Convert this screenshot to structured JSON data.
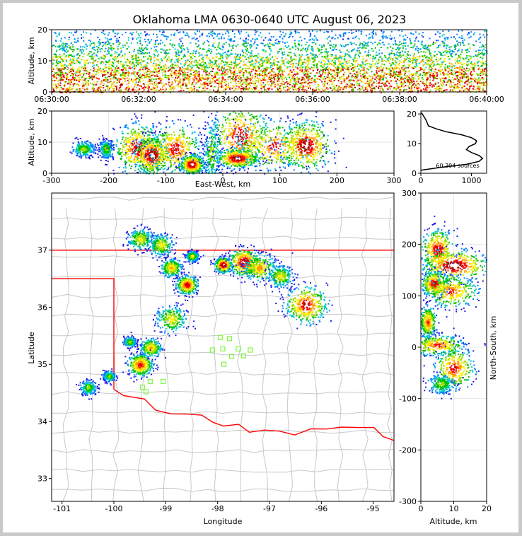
{
  "chart_data": [
    {
      "panel": "altitude-time",
      "type": "scatter",
      "title": "Oklahoma LMA 0630-0640 UTC August 06, 2023",
      "xlabel": "",
      "ylabel": "Altitude, km",
      "xticks": [
        "06:30:00",
        "06:32:00",
        "06:34:00",
        "06:36:00",
        "06:38:00",
        "06:40:00"
      ],
      "xlim": [
        "06:30:00",
        "06:40:00"
      ],
      "ylim": [
        0,
        20
      ],
      "yticks": [
        0,
        10,
        20
      ],
      "density_bands": [
        {
          "altitude_km": [
            0,
            4
          ],
          "level": 0.95
        },
        {
          "altitude_km": [
            4,
            8
          ],
          "level": 0.8
        },
        {
          "altitude_km": [
            8,
            12
          ],
          "level": 0.55
        },
        {
          "altitude_km": [
            12,
            16
          ],
          "level": 0.35
        },
        {
          "altitude_km": [
            16,
            20
          ],
          "level": 0.2
        }
      ]
    },
    {
      "panel": "altitude-east-west",
      "type": "heatmap",
      "xlabel": "East-West, km",
      "ylabel": "Altitude, km",
      "xlim": [
        -300,
        300
      ],
      "ylim": [
        0,
        20
      ],
      "xticks": [
        -300,
        -200,
        -100,
        0,
        100,
        200,
        300
      ],
      "yticks": [
        0,
        10,
        20
      ],
      "clusters": [
        {
          "x": -245,
          "z": 8,
          "sx": 10,
          "sz": 1.2,
          "w": 0.5
        },
        {
          "x": -205,
          "z": 8,
          "sx": 6,
          "sz": 1.5,
          "w": 0.5
        },
        {
          "x": -150,
          "z": 8,
          "sx": 20,
          "sz": 4,
          "w": 0.9
        },
        {
          "x": -125,
          "z": 6,
          "sx": 15,
          "sz": 3,
          "w": 1.0
        },
        {
          "x": -85,
          "z": 8,
          "sx": 22,
          "sz": 4,
          "w": 0.85
        },
        {
          "x": -55,
          "z": 3,
          "sx": 10,
          "sz": 1.5,
          "w": 1.0
        },
        {
          "x": -20,
          "z": 7,
          "sx": 8,
          "sz": 5,
          "w": 0.5
        },
        {
          "x": 30,
          "z": 12,
          "sx": 25,
          "sz": 5,
          "w": 0.9
        },
        {
          "x": 25,
          "z": 5,
          "sx": 18,
          "sz": 1.5,
          "w": 1.0
        },
        {
          "x": 90,
          "z": 9,
          "sx": 35,
          "sz": 4,
          "w": 0.8
        },
        {
          "x": 145,
          "z": 9,
          "sx": 22,
          "sz": 4,
          "w": 0.95
        }
      ]
    },
    {
      "panel": "altitude-histogram",
      "type": "line",
      "xlabel": "",
      "ylabel": "",
      "xlim": [
        0,
        1300
      ],
      "ylim": [
        0,
        21
      ],
      "xticks": [
        0,
        1000
      ],
      "yticks": [
        0,
        10,
        20
      ],
      "annotation": "60,304 sources",
      "x": [
        0,
        400,
        900,
        1150,
        1220,
        1150,
        1000,
        900,
        950,
        1080,
        1100,
        1000,
        800,
        500,
        300,
        150,
        100,
        30,
        0
      ],
      "y": [
        1,
        2,
        3,
        4,
        5,
        6,
        7,
        8,
        9,
        10,
        11,
        12,
        13,
        14,
        15,
        16,
        18,
        20,
        20.5
      ]
    },
    {
      "panel": "plan-view",
      "type": "heatmap",
      "xlabel": "Longitude",
      "ylabel": "Latitude",
      "xlim": [
        -101.2,
        -94.6
      ],
      "ylim": [
        32.6,
        38.0
      ],
      "xticks": [
        -101,
        -100,
        -99,
        -98,
        -97,
        -96,
        -95
      ],
      "yticks": [
        33,
        34,
        35,
        36,
        37
      ],
      "border_color": "#ff0000",
      "county_line_color": "#c8c8c8",
      "station_color": "#7ef542",
      "stations": [
        {
          "lon": -97.95,
          "lat": 35.47
        },
        {
          "lon": -97.77,
          "lat": 35.45
        },
        {
          "lon": -98.1,
          "lat": 35.25
        },
        {
          "lon": -97.9,
          "lat": 35.27
        },
        {
          "lon": -97.73,
          "lat": 35.14
        },
        {
          "lon": -97.6,
          "lat": 35.27
        },
        {
          "lon": -97.5,
          "lat": 35.15
        },
        {
          "lon": -97.37,
          "lat": 35.25
        },
        {
          "lon": -97.88,
          "lat": 35.0
        },
        {
          "lon": -99.3,
          "lat": 34.7
        },
        {
          "lon": -99.05,
          "lat": 34.7
        },
        {
          "lon": -99.45,
          "lat": 34.6
        },
        {
          "lon": -99.38,
          "lat": 34.52
        }
      ],
      "clusters": [
        {
          "lon": -99.5,
          "lat": 37.2,
          "s": 0.12,
          "w": 0.6
        },
        {
          "lon": -99.1,
          "lat": 37.1,
          "s": 0.12,
          "w": 0.6
        },
        {
          "lon": -98.9,
          "lat": 36.7,
          "s": 0.1,
          "w": 0.7
        },
        {
          "lon": -98.6,
          "lat": 36.4,
          "s": 0.1,
          "w": 0.9
        },
        {
          "lon": -98.5,
          "lat": 36.9,
          "s": 0.06,
          "w": 0.6
        },
        {
          "lon": -97.9,
          "lat": 36.75,
          "s": 0.08,
          "w": 1.0
        },
        {
          "lon": -97.5,
          "lat": 36.8,
          "s": 0.15,
          "w": 0.95
        },
        {
          "lon": -97.2,
          "lat": 36.7,
          "s": 0.15,
          "w": 0.7
        },
        {
          "lon": -96.8,
          "lat": 36.55,
          "s": 0.12,
          "w": 0.6
        },
        {
          "lon": -96.3,
          "lat": 36.05,
          "s": 0.2,
          "w": 0.9
        },
        {
          "lon": -98.9,
          "lat": 35.8,
          "s": 0.15,
          "w": 0.6
        },
        {
          "lon": -99.3,
          "lat": 35.3,
          "s": 0.1,
          "w": 0.7
        },
        {
          "lon": -99.5,
          "lat": 35.0,
          "s": 0.12,
          "w": 0.85
        },
        {
          "lon": -99.7,
          "lat": 35.4,
          "s": 0.06,
          "w": 0.5
        },
        {
          "lon": -100.5,
          "lat": 34.6,
          "s": 0.08,
          "w": 0.5
        },
        {
          "lon": -100.1,
          "lat": 34.8,
          "s": 0.06,
          "w": 0.5
        }
      ]
    },
    {
      "panel": "north-south-altitude",
      "type": "heatmap",
      "xlabel": "Altitude, km",
      "ylabel": "North-South, km",
      "xlim": [
        0,
        20
      ],
      "ylim": [
        -300,
        300
      ],
      "xticks": [
        0,
        10,
        20
      ],
      "yticks": [
        -300,
        -200,
        -100,
        0,
        100,
        200,
        300
      ],
      "clusters": [
        {
          "z": 5,
          "y": 190,
          "sz": 2.5,
          "sy": 20,
          "w": 0.9
        },
        {
          "z": 10,
          "y": 160,
          "sz": 5,
          "sy": 15,
          "w": 1.0
        },
        {
          "z": 4,
          "y": 125,
          "sz": 2,
          "sy": 12,
          "w": 0.9
        },
        {
          "z": 9,
          "y": 110,
          "sz": 4,
          "sy": 15,
          "w": 0.8
        },
        {
          "z": 2,
          "y": 50,
          "sz": 1.2,
          "sy": 15,
          "w": 0.8
        },
        {
          "z": 5,
          "y": 5,
          "sz": 4,
          "sy": 10,
          "w": 0.8
        },
        {
          "z": 10,
          "y": -40,
          "sz": 3,
          "sy": 20,
          "w": 0.85
        },
        {
          "z": 6,
          "y": -70,
          "sz": 2,
          "sy": 10,
          "w": 0.5
        }
      ]
    }
  ]
}
